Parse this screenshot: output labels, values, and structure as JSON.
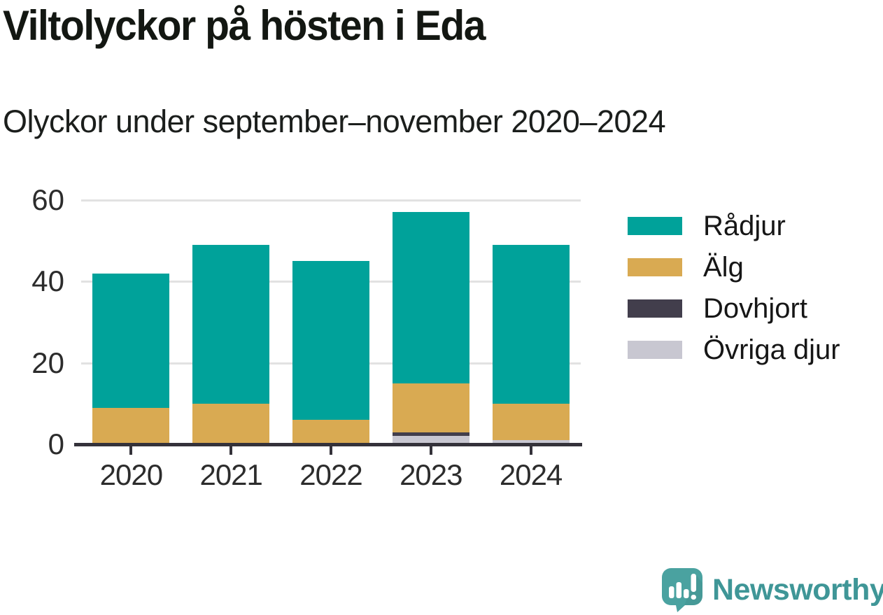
{
  "header": {
    "title": "Viltolyckor på hösten i Eda",
    "subtitle": "Olyckor under september–november 2020–2024"
  },
  "chart_data": {
    "type": "bar",
    "stacked": true,
    "title": "Viltolyckor på hösten i Eda",
    "subtitle": "Olyckor under september–november 2020–2024",
    "categories": [
      "2020",
      "2021",
      "2022",
      "2023",
      "2024"
    ],
    "series": [
      {
        "name": "Rådjur",
        "color": "#00A29A",
        "values": [
          33,
          39,
          39,
          42,
          39
        ]
      },
      {
        "name": "Älg",
        "color": "#D9AA52",
        "values": [
          9,
          10,
          6,
          12,
          9
        ]
      },
      {
        "name": "Dovhjort",
        "color": "#423E4C",
        "values": [
          0,
          0,
          0,
          1,
          0
        ]
      },
      {
        "name": "Övriga djur",
        "color": "#C8C7D1",
        "values": [
          0,
          0,
          0,
          2,
          1
        ]
      }
    ],
    "totals": [
      42,
      49,
      45,
      57,
      49
    ],
    "ylim": [
      0,
      60
    ],
    "yticks": [
      0,
      20,
      40,
      60
    ],
    "grid": "horizontal",
    "legend_position": "right",
    "stack_order": "first series on top, last series at bottom"
  },
  "footer": {
    "brand": "Newsworthy"
  },
  "colors": {
    "axis": "#34323A",
    "gridline": "#E2E2E2",
    "brand_icon": "#4AA2A0",
    "brand_text": "#3F9697"
  }
}
